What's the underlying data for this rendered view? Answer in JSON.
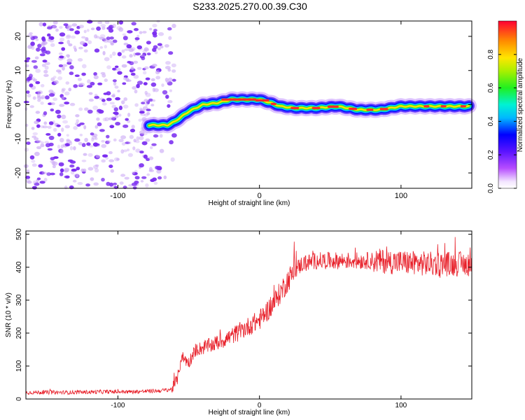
{
  "title": "S233.2025.270.00.39.C30",
  "colors": {
    "snr_line": "#e8202a",
    "noise_dot": "#7a2cf0",
    "noise_dot_light": "#c9a6f5",
    "axis": "#000000",
    "grid_tick": "#000000"
  },
  "chart_data": [
    {
      "type": "heatmap",
      "title": "S233.2025.270.00.39.C30",
      "xlabel": "Height of straight line (km)",
      "ylabel": "Frequency (Hz)",
      "xlim": [
        -165,
        150
      ],
      "ylim": [
        -24.5,
        24.5
      ],
      "xticks": [
        -100,
        0,
        100
      ],
      "xtick_labels": [
        "-100",
        "0",
        "100"
      ],
      "yticks": [
        -20,
        -10,
        0,
        10,
        20
      ],
      "ytick_labels": [
        "-20",
        "-10",
        "0",
        "10",
        "20"
      ],
      "noise_region_x": [
        -165,
        -60
      ],
      "ridge": {
        "x": [
          -78,
          -70,
          -65,
          -60,
          -50,
          -40,
          -30,
          -20,
          -10,
          0,
          8,
          15,
          25,
          40,
          55,
          70,
          85,
          100,
          115,
          130,
          148
        ],
        "y": [
          -6,
          -6,
          -6,
          -5,
          -2,
          0,
          0.5,
          1.5,
          1.5,
          1.5,
          0.5,
          -0.5,
          -1,
          -1,
          -0.5,
          -1.5,
          -1.5,
          -0.5,
          -0.5,
          -0.5,
          -0.5
        ]
      },
      "colorbar": {
        "label": "Normalized spectral amplitude",
        "range": [
          0,
          1
        ],
        "ticks": [
          0.0,
          0.2,
          0.4,
          0.6,
          0.8
        ],
        "tick_labels": [
          "0.0",
          "0.2",
          "0.4",
          "0.6",
          "0.8"
        ],
        "colormap": "rainbow_white_to_red"
      }
    },
    {
      "type": "line",
      "xlabel": "Height of straight line (km)",
      "ylabel": "SNR (10 * v/v)",
      "xlim": [
        -165,
        150
      ],
      "ylim": [
        0,
        510
      ],
      "xticks": [
        -100,
        0,
        100
      ],
      "xtick_labels": [
        "-100",
        "0",
        "100"
      ],
      "yticks": [
        0,
        100,
        200,
        300,
        400,
        500
      ],
      "ytick_labels": [
        "0",
        "100",
        "200",
        "300",
        "400",
        "500"
      ],
      "series": [
        {
          "name": "SNR",
          "x": [
            -165,
            -150,
            -130,
            -110,
            -90,
            -70,
            -62,
            -58,
            -55,
            -50,
            -45,
            -40,
            -30,
            -20,
            -10,
            0,
            10,
            20,
            25,
            30,
            40,
            60,
            80,
            100,
            120,
            140,
            150
          ],
          "y": [
            20,
            20,
            20,
            22,
            22,
            25,
            30,
            60,
            130,
            110,
            150,
            155,
            170,
            190,
            215,
            240,
            290,
            360,
            390,
            410,
            420,
            420,
            420,
            415,
            410,
            410,
            410
          ]
        }
      ]
    }
  ]
}
